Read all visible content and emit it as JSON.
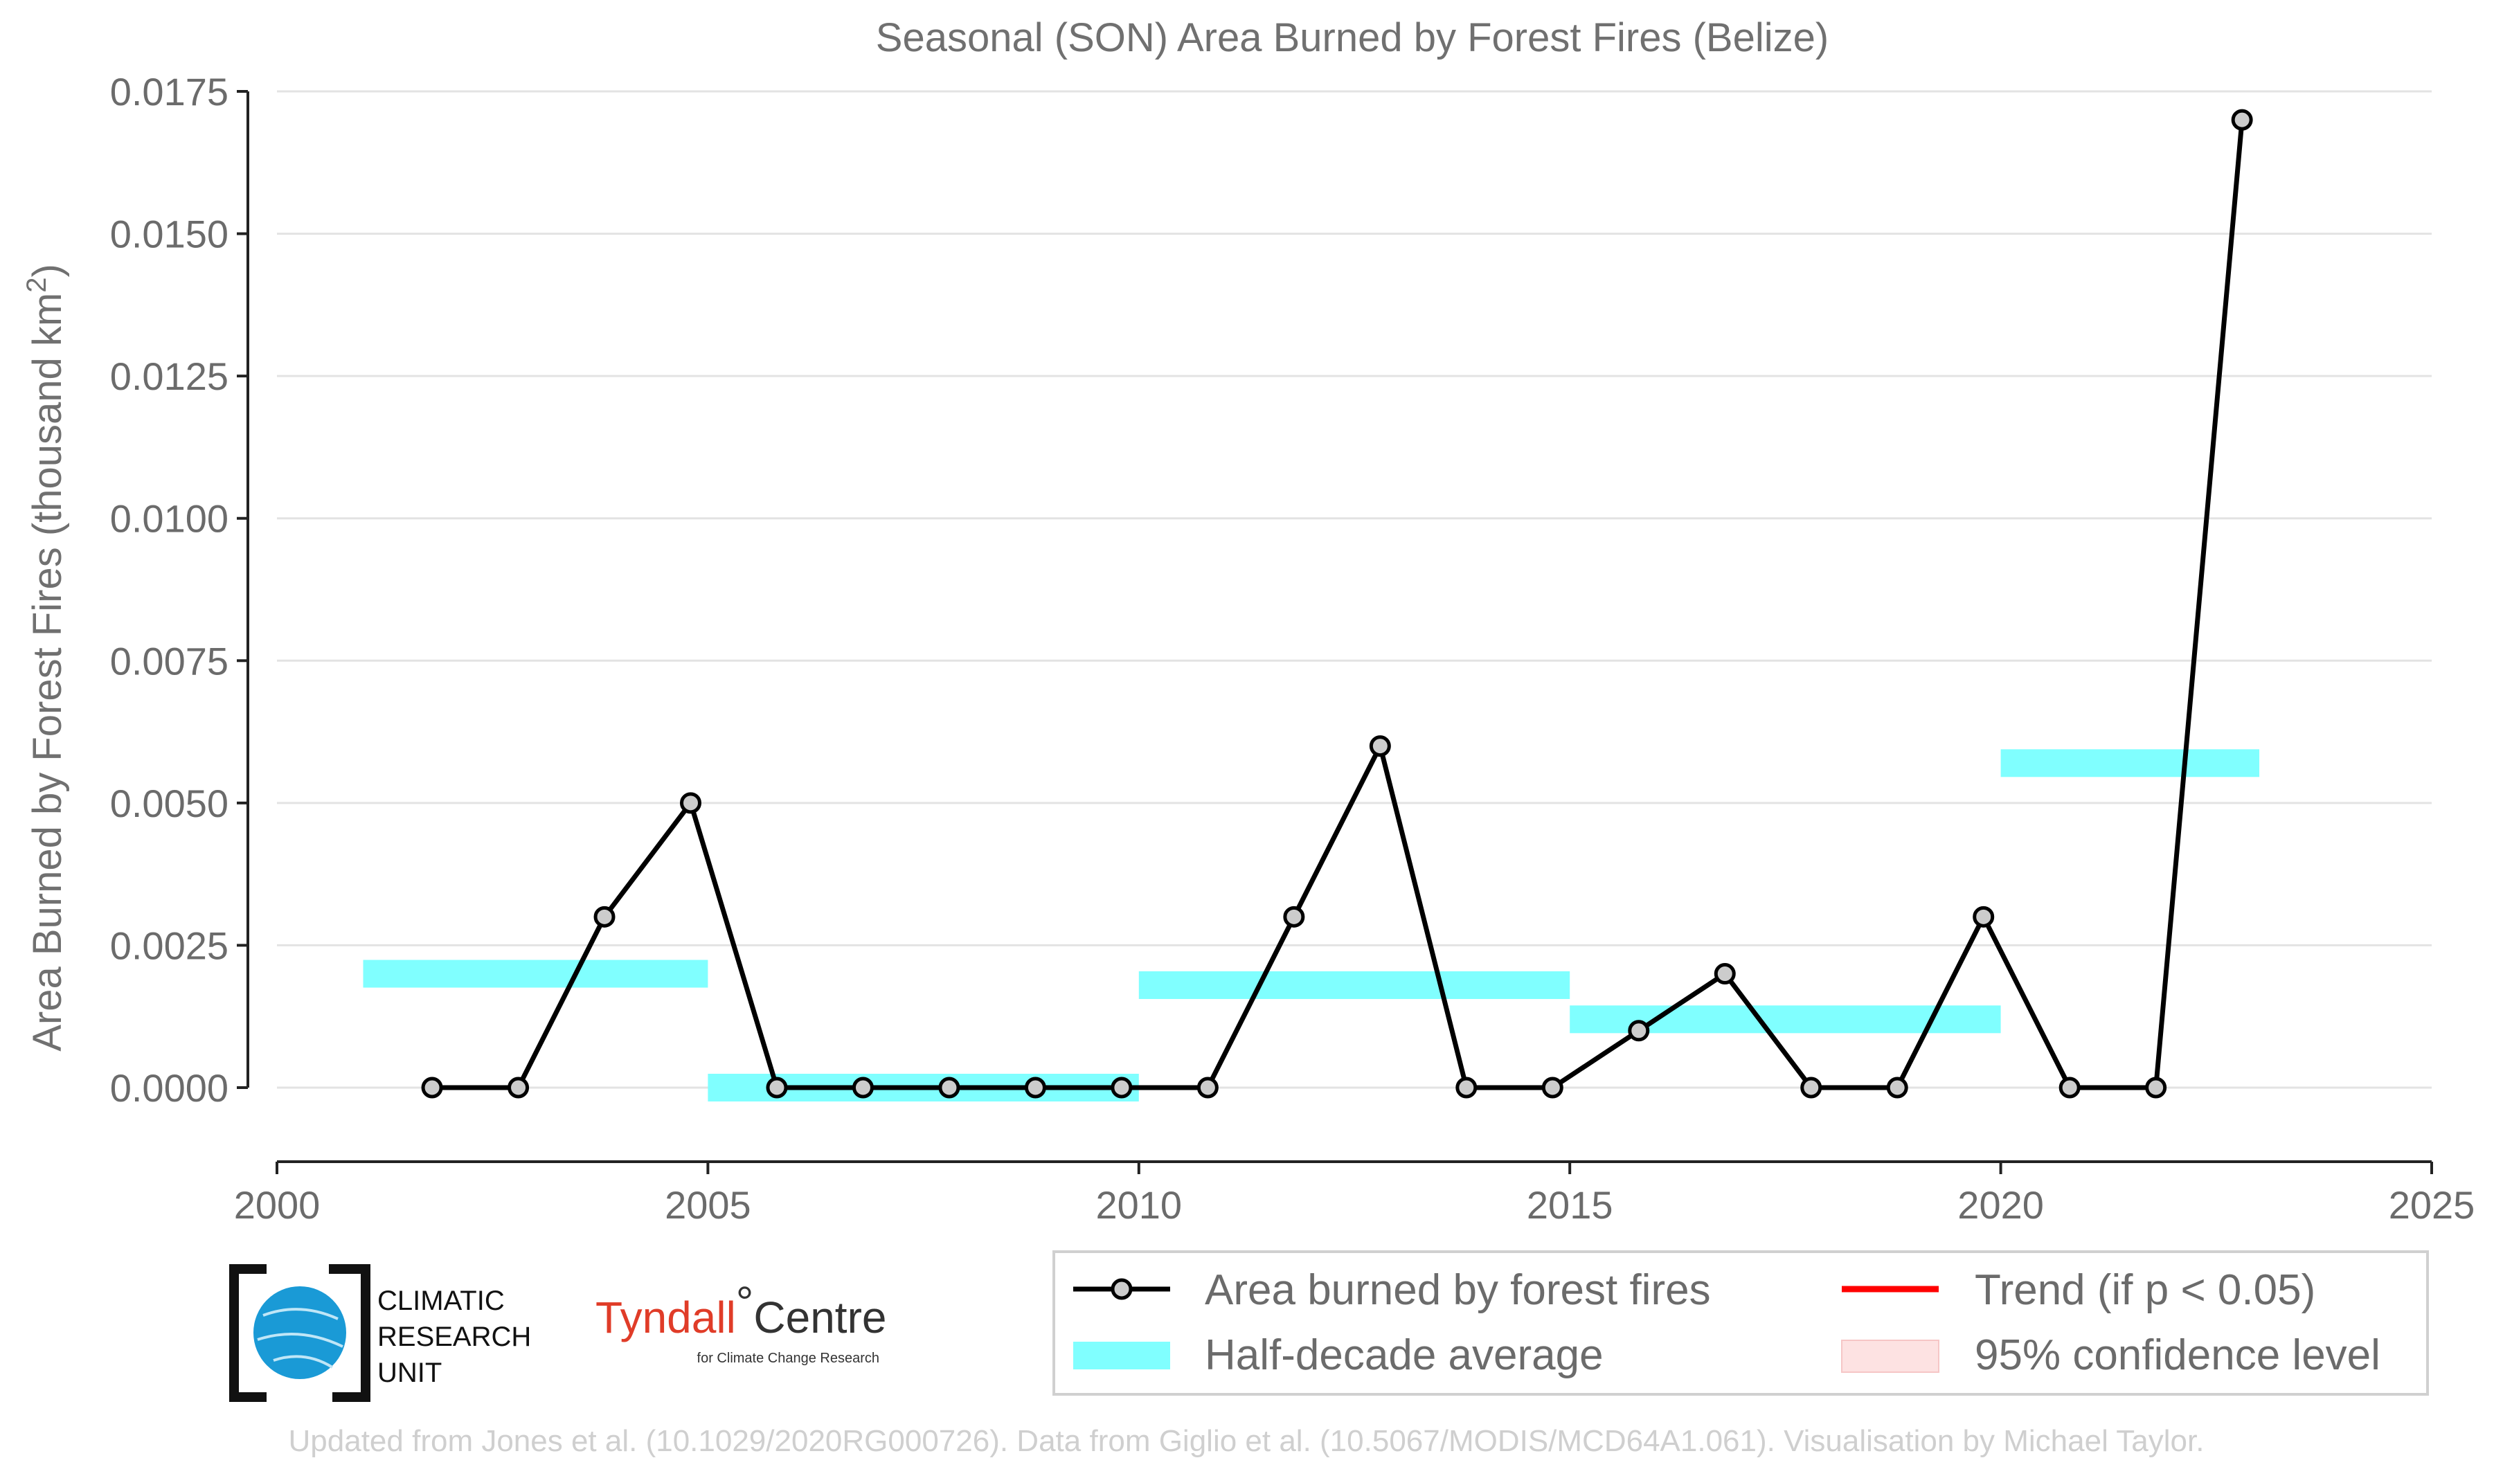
{
  "chart_data": {
    "type": "line",
    "title": "Seasonal (SON) Area Burned by Forest Fires (Belize)",
    "ylabel": "Area Burned by Forest Fires (thousand km",
    "ylabel_sup": "2",
    "ylabel_end": ")",
    "xlim": [
      2000,
      2025
    ],
    "ylim": [
      -0.0009,
      0.0175
    ],
    "x_ticks": [
      2000,
      2005,
      2010,
      2015,
      2020,
      2025
    ],
    "x_tick_labels": [
      "2000",
      "2005",
      "2010",
      "2015",
      "2020",
      "2025"
    ],
    "y_ticks": [
      0,
      0.0025,
      0.005,
      0.0075,
      0.01,
      0.0125,
      0.015,
      0.0175
    ],
    "y_tick_labels": [
      "0.0000",
      "0.0025",
      "0.0050",
      "0.0075",
      "0.0100",
      "0.0125",
      "0.0150",
      "0.0175"
    ],
    "grid": "horizontal",
    "series": [
      {
        "name": "Area burned by forest fires",
        "color": "#000000",
        "marker_fill": "#cccccc",
        "x": [
          2001.8,
          2002.8,
          2003.8,
          2004.8,
          2005.8,
          2006.8,
          2007.8,
          2008.8,
          2009.8,
          2010.8,
          2011.8,
          2012.8,
          2013.8,
          2014.8,
          2015.8,
          2016.8,
          2017.8,
          2018.8,
          2019.8,
          2020.8,
          2021.8,
          2022.8
        ],
        "values": [
          0,
          0,
          0.003,
          0.005,
          0,
          0,
          0,
          0,
          0,
          0,
          0.003,
          0.006,
          0,
          0,
          0.001,
          0.002,
          0,
          0,
          0.003,
          0,
          0,
          0.017
        ]
      }
    ],
    "half_decade_average": {
      "name": "Half-decade average",
      "color": "#80ffff",
      "segments": [
        {
          "x0": 2001,
          "x1": 2005,
          "value": 0.002
        },
        {
          "x0": 2005,
          "x1": 2010,
          "value": 0
        },
        {
          "x0": 2010,
          "x1": 2015,
          "value": 0.0018
        },
        {
          "x0": 2015,
          "x1": 2020,
          "value": 0.0012
        },
        {
          "x0": 2020,
          "x1": 2023,
          "value": 0.0057
        }
      ]
    },
    "legend": {
      "placement": "bottom-right",
      "items": [
        {
          "label": "Area burned by forest fires",
          "kind": "line-marker",
          "color": "#000000"
        },
        {
          "label": "Trend (if p < 0.05)",
          "kind": "line",
          "color": "#ff0000"
        },
        {
          "label": "Half-decade average",
          "kind": "band",
          "color": "#80ffff"
        },
        {
          "label": "95% confidence level",
          "kind": "band",
          "color": "#fde2e2"
        }
      ]
    }
  },
  "logos": {
    "cru_lines": [
      "CLIMATIC",
      "RESEARCH",
      "UNIT"
    ],
    "tyndall_name": "Tyndall",
    "tyndall_degree": "°",
    "tyndall_centre": "Centre",
    "tyndall_sub": "for Climate Change Research"
  },
  "credit": "Updated from Jones et al. (10.1029/2020RG000726). Data from Giglio et al. (10.5067/MODIS/MCD64A1.061). Visualisation by Michael Taylor."
}
